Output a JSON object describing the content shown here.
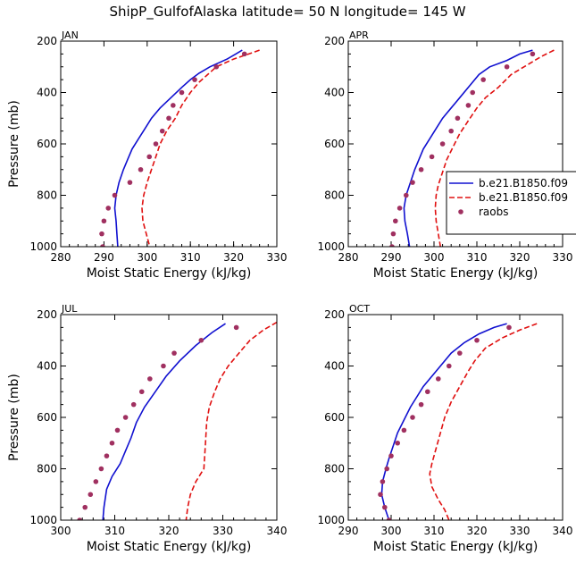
{
  "title": "ShipP_GulfofAlaska   latitude= 50 N longitude= 145 W",
  "legend": {
    "placement": "right, between upper panels",
    "entries": [
      "b.e21.B1850.f09",
      "b.e21.B1850.f09",
      "raobs"
    ]
  },
  "colors": {
    "solid": "#1010d0",
    "dashed": "#e01010",
    "dots": "#a03060"
  },
  "chart_data": [
    {
      "type": "line",
      "panel_label": "JAN",
      "xlabel": "Moist Static Energy (kJ/kg)",
      "ylabel": "Pressure (mb)",
      "xlim": [
        280,
        330
      ],
      "ylim": [
        1000,
        200
      ],
      "xticks": [
        280,
        290,
        300,
        310,
        320,
        330
      ],
      "yticks": [
        200,
        400,
        600,
        800,
        1000
      ],
      "series": [
        {
          "style": "solid",
          "points": [
            [
              322.0,
              235
            ],
            [
              320.5,
              250
            ],
            [
              318.5,
              270
            ],
            [
              314.5,
              300
            ],
            [
              312.0,
              325
            ],
            [
              310.0,
              350
            ],
            [
              308.0,
              380
            ],
            [
              305.5,
              420
            ],
            [
              303.0,
              460
            ],
            [
              301.0,
              500
            ],
            [
              299.5,
              540
            ],
            [
              298.0,
              580
            ],
            [
              296.5,
              620
            ],
            [
              295.5,
              660
            ],
            [
              294.5,
              700
            ],
            [
              293.5,
              750
            ],
            [
              292.8,
              800
            ],
            [
              292.5,
              850
            ],
            [
              292.8,
              900
            ],
            [
              293.0,
              950
            ],
            [
              293.2,
              1000
            ]
          ]
        },
        {
          "style": "dashed",
          "points": [
            [
              326.0,
              235
            ],
            [
              323.5,
              250
            ],
            [
              320.0,
              270
            ],
            [
              316.0,
              300
            ],
            [
              314.0,
              330
            ],
            [
              312.0,
              360
            ],
            [
              310.0,
              400
            ],
            [
              308.0,
              450
            ],
            [
              306.5,
              500
            ],
            [
              304.5,
              550
            ],
            [
              303.0,
              600
            ],
            [
              302.0,
              650
            ],
            [
              301.0,
              700
            ],
            [
              300.0,
              750
            ],
            [
              299.2,
              800
            ],
            [
              298.8,
              850
            ],
            [
              299.0,
              900
            ],
            [
              299.8,
              950
            ],
            [
              300.6,
              1000
            ]
          ]
        },
        {
          "style": "dots",
          "points": [
            [
              322.5,
              250
            ],
            [
              316.0,
              300
            ],
            [
              311.0,
              350
            ],
            [
              308.0,
              400
            ],
            [
              306.0,
              450
            ],
            [
              305.0,
              500
            ],
            [
              303.5,
              550
            ],
            [
              302.0,
              600
            ],
            [
              300.5,
              650
            ],
            [
              298.5,
              700
            ],
            [
              296.0,
              750
            ],
            [
              292.5,
              800
            ],
            [
              291.0,
              850
            ],
            [
              290.0,
              900
            ],
            [
              289.5,
              950
            ],
            [
              289.7,
              1000
            ]
          ]
        }
      ]
    },
    {
      "type": "line",
      "panel_label": "APR",
      "xlabel": "Moist Static Energy (kJ/kg)",
      "ylabel": "",
      "xlim": [
        280,
        330
      ],
      "ylim": [
        1000,
        200
      ],
      "xticks": [
        280,
        290,
        300,
        310,
        320,
        330
      ],
      "yticks": [
        200,
        400,
        600,
        800,
        1000
      ],
      "series": [
        {
          "style": "solid",
          "points": [
            [
              323.0,
              235
            ],
            [
              320.0,
              250
            ],
            [
              317.0,
              275
            ],
            [
              313.0,
              300
            ],
            [
              310.5,
              330
            ],
            [
              308.0,
              380
            ],
            [
              306.0,
              420
            ],
            [
              304.0,
              460
            ],
            [
              302.0,
              500
            ],
            [
              300.5,
              540
            ],
            [
              299.0,
              580
            ],
            [
              297.5,
              620
            ],
            [
              296.5,
              660
            ],
            [
              295.5,
              700
            ],
            [
              294.5,
              750
            ],
            [
              293.5,
              800
            ],
            [
              293.0,
              850
            ],
            [
              293.2,
              900
            ],
            [
              293.8,
              950
            ],
            [
              294.3,
              1000
            ]
          ]
        },
        {
          "style": "dashed",
          "points": [
            [
              328.0,
              235
            ],
            [
              325.0,
              260
            ],
            [
              322.0,
              290
            ],
            [
              318.0,
              330
            ],
            [
              315.0,
              380
            ],
            [
              312.0,
              420
            ],
            [
              310.0,
              460
            ],
            [
              308.0,
              510
            ],
            [
              306.0,
              560
            ],
            [
              304.5,
              610
            ],
            [
              303.0,
              660
            ],
            [
              302.0,
              710
            ],
            [
              301.0,
              760
            ],
            [
              300.5,
              800
            ],
            [
              300.3,
              850
            ],
            [
              300.5,
              900
            ],
            [
              301.0,
              950
            ],
            [
              301.5,
              1000
            ]
          ]
        },
        {
          "style": "dots",
          "points": [
            [
              323.0,
              250
            ],
            [
              317.0,
              300
            ],
            [
              311.5,
              350
            ],
            [
              309.0,
              400
            ],
            [
              308.0,
              450
            ],
            [
              305.5,
              500
            ],
            [
              304.0,
              550
            ],
            [
              302.0,
              600
            ],
            [
              299.5,
              650
            ],
            [
              297.0,
              700
            ],
            [
              295.0,
              750
            ],
            [
              293.5,
              800
            ],
            [
              292.0,
              850
            ],
            [
              291.0,
              900
            ],
            [
              290.5,
              950
            ],
            [
              290.2,
              1000
            ]
          ]
        }
      ]
    },
    {
      "type": "line",
      "panel_label": "JUL",
      "xlabel": "Moist Static Energy (kJ/kg)",
      "ylabel": "Pressure (mb)",
      "xlim": [
        300,
        340
      ],
      "ylim": [
        1000,
        200
      ],
      "xticks": [
        300,
        310,
        320,
        330,
        340
      ],
      "yticks": [
        200,
        400,
        600,
        800,
        1000
      ],
      "series": [
        {
          "style": "solid",
          "points": [
            [
              330.5,
              235
            ],
            [
              328.0,
              270
            ],
            [
              325.0,
              320
            ],
            [
              322.0,
              380
            ],
            [
              319.5,
              440
            ],
            [
              317.5,
              500
            ],
            [
              315.5,
              560
            ],
            [
              314.0,
              620
            ],
            [
              313.0,
              680
            ],
            [
              312.0,
              730
            ],
            [
              311.0,
              780
            ],
            [
              309.5,
              830
            ],
            [
              308.5,
              880
            ],
            [
              308.0,
              950
            ],
            [
              307.8,
              1000
            ]
          ]
        },
        {
          "style": "dashed",
          "points": [
            [
              340.0,
              230
            ],
            [
              337.5,
              260
            ],
            [
              335.0,
              300
            ],
            [
              333.0,
              350
            ],
            [
              331.0,
              400
            ],
            [
              329.5,
              450
            ],
            [
              328.5,
              500
            ],
            [
              327.5,
              560
            ],
            [
              327.0,
              620
            ],
            [
              326.8,
              700
            ],
            [
              326.5,
              800
            ],
            [
              325.0,
              850
            ],
            [
              324.0,
              900
            ],
            [
              323.5,
              950
            ],
            [
              323.2,
              1000
            ]
          ]
        },
        {
          "style": "dots",
          "points": [
            [
              332.5,
              250
            ],
            [
              326.0,
              300
            ],
            [
              321.0,
              350
            ],
            [
              319.0,
              400
            ],
            [
              316.5,
              450
            ],
            [
              315.0,
              500
            ],
            [
              313.5,
              550
            ],
            [
              312.0,
              600
            ],
            [
              310.5,
              650
            ],
            [
              309.5,
              700
            ],
            [
              308.5,
              750
            ],
            [
              307.5,
              800
            ],
            [
              306.5,
              850
            ],
            [
              305.5,
              900
            ],
            [
              304.5,
              950
            ],
            [
              303.5,
              1000
            ]
          ]
        }
      ]
    },
    {
      "type": "line",
      "panel_label": "OCT",
      "xlabel": "Moist Static Energy (kJ/kg)",
      "ylabel": "",
      "xlim": [
        290,
        340
      ],
      "ylim": [
        1000,
        200
      ],
      "xticks": [
        290,
        300,
        310,
        320,
        330,
        340
      ],
      "yticks": [
        200,
        400,
        600,
        800,
        1000
      ],
      "series": [
        {
          "style": "solid",
          "points": [
            [
              327.0,
              235
            ],
            [
              324.0,
              250
            ],
            [
              320.5,
              275
            ],
            [
              317.0,
              310
            ],
            [
              314.0,
              350
            ],
            [
              311.5,
              400
            ],
            [
              309.5,
              440
            ],
            [
              307.5,
              480
            ],
            [
              306.0,
              520
            ],
            [
              304.5,
              560
            ],
            [
              303.0,
              610
            ],
            [
              301.5,
              660
            ],
            [
              300.5,
              710
            ],
            [
              299.5,
              760
            ],
            [
              298.8,
              800
            ],
            [
              298.0,
              850
            ],
            [
              297.8,
              900
            ],
            [
              298.5,
              950
            ],
            [
              299.5,
              1000
            ]
          ]
        },
        {
          "style": "dashed",
          "points": [
            [
              334.0,
              235
            ],
            [
              330.0,
              260
            ],
            [
              326.0,
              290
            ],
            [
              322.0,
              330
            ],
            [
              319.5,
              380
            ],
            [
              318.0,
              420
            ],
            [
              316.0,
              480
            ],
            [
              314.0,
              540
            ],
            [
              312.5,
              600
            ],
            [
              311.5,
              660
            ],
            [
              310.5,
              720
            ],
            [
              309.5,
              780
            ],
            [
              309.0,
              820
            ],
            [
              309.5,
              870
            ],
            [
              311.0,
              920
            ],
            [
              312.5,
              960
            ],
            [
              313.5,
              1000
            ]
          ]
        },
        {
          "style": "dots",
          "points": [
            [
              327.5,
              250
            ],
            [
              320.0,
              300
            ],
            [
              316.0,
              350
            ],
            [
              313.5,
              400
            ],
            [
              311.0,
              450
            ],
            [
              308.5,
              500
            ],
            [
              307.0,
              550
            ],
            [
              305.0,
              600
            ],
            [
              303.0,
              650
            ],
            [
              301.5,
              700
            ],
            [
              300.0,
              750
            ],
            [
              299.0,
              800
            ],
            [
              298.0,
              850
            ],
            [
              297.5,
              900
            ],
            [
              298.5,
              950
            ],
            [
              299.5,
              1000
            ]
          ]
        }
      ]
    }
  ]
}
